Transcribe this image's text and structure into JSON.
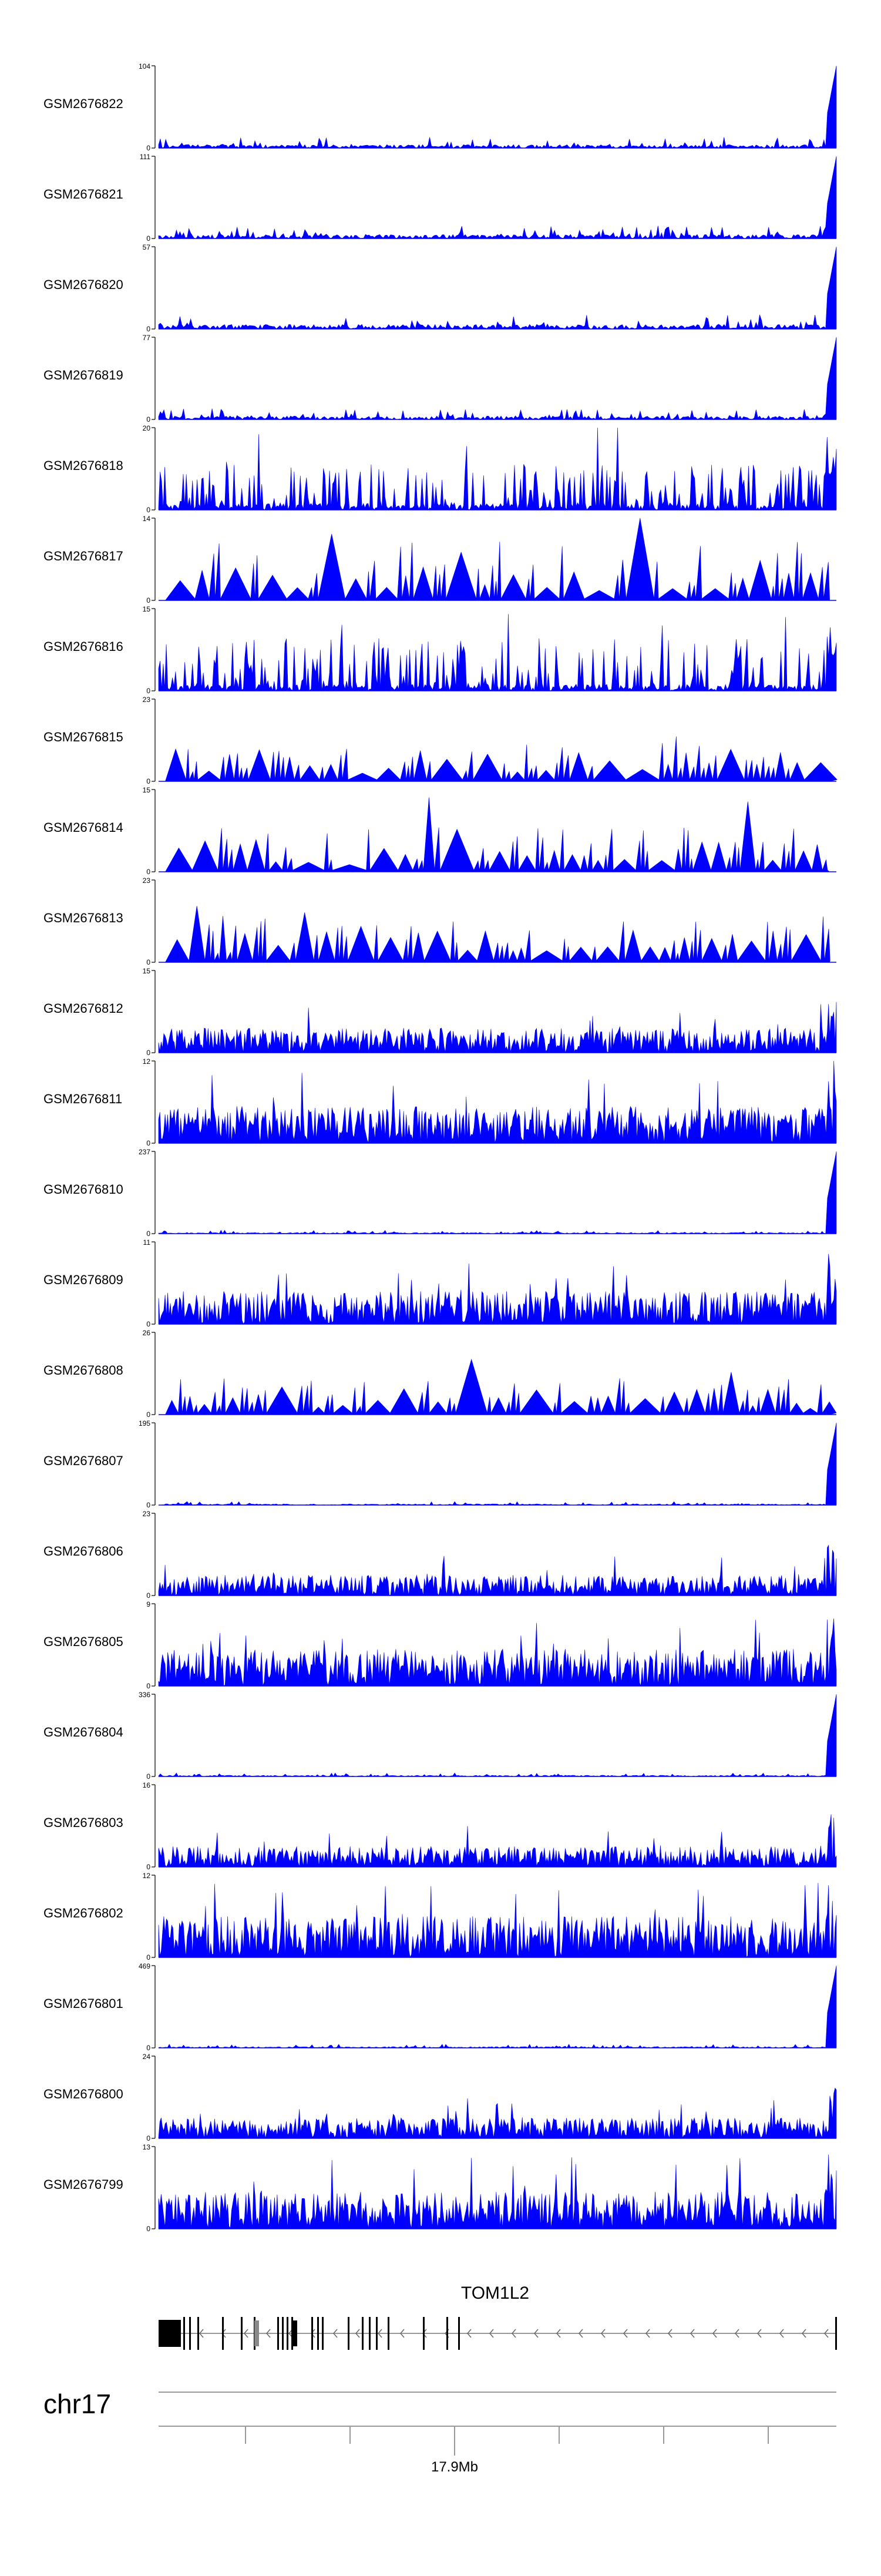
{
  "chart_data": {
    "type": "area",
    "title": "",
    "chromosome": "chr17",
    "gene": "TOM1L2",
    "genomic_tick_label": "17.9Mb",
    "ylim_min": "0",
    "color": "#0000ff",
    "tracks": [
      {
        "name": "GSM2676822",
        "ymax": "104",
        "pattern": "sparse-end",
        "seed": 11,
        "level": 0.06
      },
      {
        "name": "GSM2676821",
        "ymax": "111",
        "pattern": "sparse-end",
        "seed": 23,
        "level": 0.07
      },
      {
        "name": "GSM2676820",
        "ymax": "57",
        "pattern": "sparse-end",
        "seed": 37,
        "level": 0.08
      },
      {
        "name": "GSM2676819",
        "ymax": "77",
        "pattern": "sparse-end",
        "seed": 41,
        "level": 0.06
      },
      {
        "name": "GSM2676818",
        "ymax": "20",
        "pattern": "spiky",
        "seed": 53,
        "level": 0.35
      },
      {
        "name": "GSM2676817",
        "ymax": "14",
        "pattern": "tents",
        "seed": 67,
        "level": 0.45
      },
      {
        "name": "GSM2676816",
        "ymax": "15",
        "pattern": "spiky",
        "seed": 71,
        "level": 0.4
      },
      {
        "name": "GSM2676815",
        "ymax": "23",
        "pattern": "tents",
        "seed": 83,
        "level": 0.35
      },
      {
        "name": "GSM2676814",
        "ymax": "15",
        "pattern": "tents",
        "seed": 97,
        "level": 0.35
      },
      {
        "name": "GSM2676813",
        "ymax": "23",
        "pattern": "tents",
        "seed": 101,
        "level": 0.35
      },
      {
        "name": "GSM2676812",
        "ymax": "15",
        "pattern": "dense",
        "seed": 113,
        "level": 0.3
      },
      {
        "name": "GSM2676811",
        "ymax": "12",
        "pattern": "dense",
        "seed": 127,
        "level": 0.45
      },
      {
        "name": "GSM2676810",
        "ymax": "237",
        "pattern": "sparse-end",
        "seed": 131,
        "level": 0.02
      },
      {
        "name": "GSM2676809",
        "ymax": "11",
        "pattern": "dense",
        "seed": 149,
        "level": 0.4
      },
      {
        "name": "GSM2676808",
        "ymax": "26",
        "pattern": "tents",
        "seed": 151,
        "level": 0.3
      },
      {
        "name": "GSM2676807",
        "ymax": "195",
        "pattern": "sparse-end",
        "seed": 163,
        "level": 0.02
      },
      {
        "name": "GSM2676806",
        "ymax": "23",
        "pattern": "dense",
        "seed": 173,
        "level": 0.25
      },
      {
        "name": "GSM2676805",
        "ymax": "9",
        "pattern": "dense",
        "seed": 181,
        "level": 0.45
      },
      {
        "name": "GSM2676804",
        "ymax": "336",
        "pattern": "sparse-end",
        "seed": 191,
        "level": 0.02
      },
      {
        "name": "GSM2676803",
        "ymax": "16",
        "pattern": "dense",
        "seed": 193,
        "level": 0.25
      },
      {
        "name": "GSM2676802",
        "ymax": "12",
        "pattern": "dense",
        "seed": 197,
        "level": 0.5
      },
      {
        "name": "GSM2676801",
        "ymax": "469",
        "pattern": "sparse-end",
        "seed": 199,
        "level": 0.02
      },
      {
        "name": "GSM2676800",
        "ymax": "24",
        "pattern": "dense",
        "seed": 211,
        "level": 0.25
      },
      {
        "name": "GSM2676799",
        "ymax": "13",
        "pattern": "dense",
        "seed": 223,
        "level": 0.45
      }
    ]
  }
}
